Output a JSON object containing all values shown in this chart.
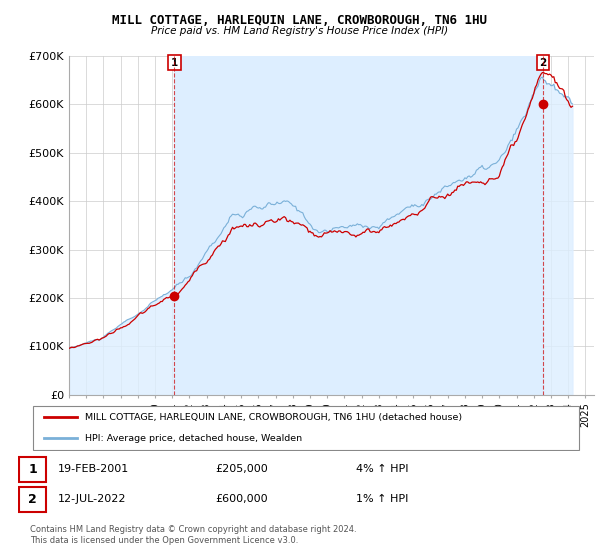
{
  "title": "MILL COTTAGE, HARLEQUIN LANE, CROWBOROUGH, TN6 1HU",
  "subtitle": "Price paid vs. HM Land Registry's House Price Index (HPI)",
  "ylim": [
    0,
    700000
  ],
  "xlim_start": 1995.0,
  "xlim_end": 2025.5,
  "yticks": [
    0,
    100000,
    200000,
    300000,
    400000,
    500000,
    600000,
    700000
  ],
  "ytick_labels": [
    "£0",
    "£100K",
    "£200K",
    "£300K",
    "£400K",
    "£500K",
    "£600K",
    "£700K"
  ],
  "xticks": [
    1995,
    1996,
    1997,
    1998,
    1999,
    2000,
    2001,
    2002,
    2003,
    2004,
    2005,
    2006,
    2007,
    2008,
    2009,
    2010,
    2011,
    2012,
    2013,
    2014,
    2015,
    2016,
    2017,
    2018,
    2019,
    2020,
    2021,
    2022,
    2023,
    2024,
    2025
  ],
  "hpi_color": "#7ab0d8",
  "hpi_fill_color": "#ddeeff",
  "property_color": "#cc0000",
  "shade_color": "#ddeeff",
  "marker1_x": 2001.12,
  "marker1_y": 205000,
  "marker2_x": 2022.54,
  "marker2_y": 600000,
  "legend_property": "MILL COTTAGE, HARLEQUIN LANE, CROWBOROUGH, TN6 1HU (detached house)",
  "legend_hpi": "HPI: Average price, detached house, Wealden",
  "annotation1_label": "1",
  "annotation1_date": "19-FEB-2001",
  "annotation1_price": "£205,000",
  "annotation1_hpi": "4% ↑ HPI",
  "annotation2_label": "2",
  "annotation2_date": "12-JUL-2022",
  "annotation2_price": "£600,000",
  "annotation2_hpi": "1% ↑ HPI",
  "footer": "Contains HM Land Registry data © Crown copyright and database right 2024.\nThis data is licensed under the Open Government Licence v3.0.",
  "background_color": "#ffffff",
  "grid_color": "#cccccc"
}
